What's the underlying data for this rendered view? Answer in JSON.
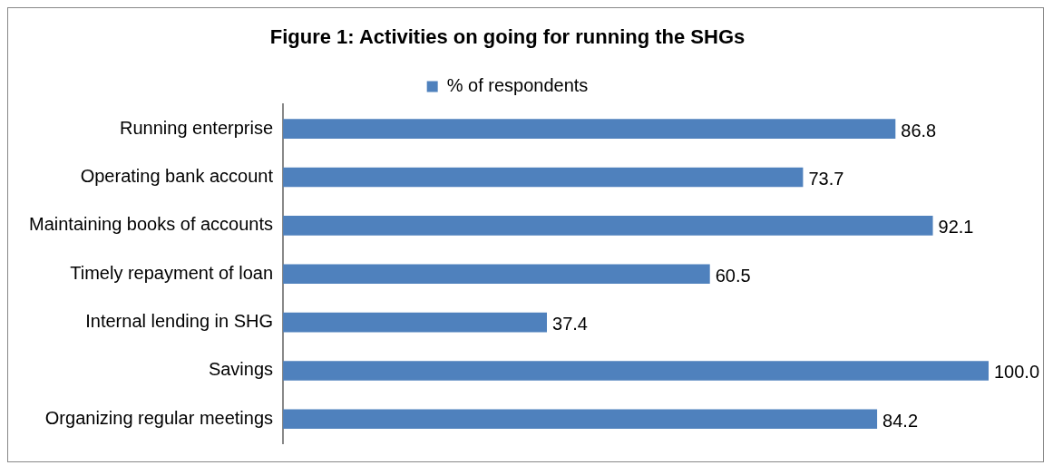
{
  "chart_data": {
    "type": "bar",
    "orientation": "horizontal",
    "title": "Figure 1: Activities on going for running the SHGs",
    "categories": [
      "Running enterprise",
      "Operating bank account",
      "Maintaining books of accounts",
      "Timely repayment of loan",
      "Internal lending in SHG",
      "Savings",
      "Organizing regular meetings"
    ],
    "series": [
      {
        "name": "% of respondents",
        "color": "#4f81bd",
        "values": [
          86.8,
          73.7,
          92.1,
          60.5,
          37.4,
          100.0,
          84.2
        ],
        "value_labels": [
          "86.8",
          "73.7",
          "92.1",
          "60.5",
          "37.4",
          "100.0",
          "84.2"
        ]
      }
    ],
    "legend": "top",
    "grid": false,
    "tick_labels": "y"
  }
}
